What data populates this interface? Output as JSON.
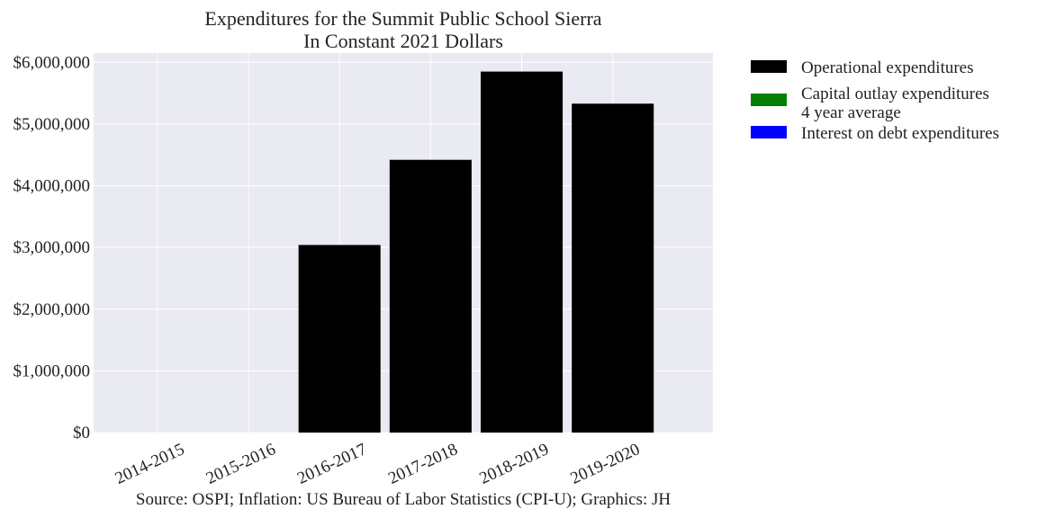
{
  "chart_data": {
    "type": "bar",
    "title": "Expenditures for the Summit Public School Sierra",
    "subtitle": "In Constant 2021 Dollars",
    "categories": [
      "2014-2015",
      "2015-2016",
      "2016-2017",
      "2017-2018",
      "2018-2019",
      "2019-2020"
    ],
    "series": [
      {
        "name": "Operational expenditures",
        "color": "#000000",
        "values": [
          0,
          0,
          3040000,
          4420000,
          5850000,
          5330000
        ]
      },
      {
        "name": "Capital outlay expenditures\n4 year average",
        "color": "#008000",
        "values": [
          0,
          0,
          0,
          0,
          0,
          0
        ]
      },
      {
        "name": "Interest on debt expenditures",
        "color": "#0000ff",
        "values": [
          0,
          0,
          0,
          0,
          0,
          0
        ]
      }
    ],
    "yticks": [
      0,
      1000000,
      2000000,
      3000000,
      4000000,
      5000000,
      6000000
    ],
    "ytick_labels": [
      "$0",
      "$1,000,000",
      "$2,000,000",
      "$3,000,000",
      "$4,000,000",
      "$5,000,000",
      "$6,000,000"
    ],
    "ylim": [
      0,
      6150000
    ],
    "xlabel": "",
    "ylabel": "",
    "grid": true,
    "legend_position": "outside-right",
    "plot_background": "#eaeaf2",
    "source_note": "Source: OSPI; Inflation: US Bureau of Labor Statistics (CPI-U); Graphics: JH"
  }
}
